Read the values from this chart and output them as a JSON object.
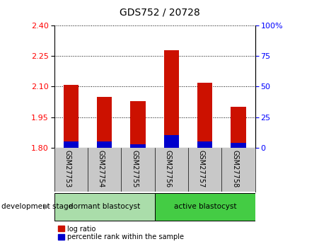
{
  "title": "GDS752 / 20728",
  "samples": [
    "GSM27753",
    "GSM27754",
    "GSM27755",
    "GSM27756",
    "GSM27757",
    "GSM27758"
  ],
  "log_ratio": [
    2.11,
    2.05,
    2.03,
    2.28,
    2.12,
    2.0
  ],
  "percentile_rank": [
    5,
    5,
    3,
    10,
    5,
    4
  ],
  "ylim_left": [
    1.8,
    2.4
  ],
  "ylim_right": [
    0,
    100
  ],
  "yticks_left": [
    1.8,
    1.95,
    2.1,
    2.25,
    2.4
  ],
  "yticks_right": [
    0,
    25,
    50,
    75,
    100
  ],
  "bar_color_red": "#cc1100",
  "bar_color_blue": "#0000cc",
  "bar_width": 0.45,
  "groups": [
    {
      "label": "dormant blastocyst",
      "indices": [
        0,
        1,
        2
      ],
      "color": "#aaddaa"
    },
    {
      "label": "active blastocyst",
      "indices": [
        3,
        4,
        5
      ],
      "color": "#44cc44"
    }
  ],
  "group_label": "development stage",
  "tick_area_color": "#c8c8c8",
  "legend_items": [
    "log ratio",
    "percentile rank within the sample"
  ],
  "legend_colors": [
    "#cc1100",
    "#0000cc"
  ]
}
